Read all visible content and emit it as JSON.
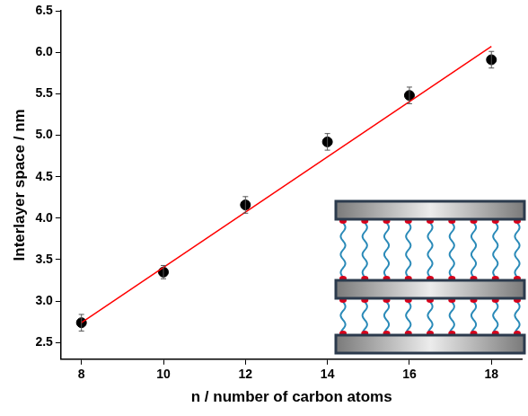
{
  "chart_data": {
    "type": "scatter",
    "x_label": "n / number of carbon atoms",
    "y_label": "Interlayer space / nm",
    "xlim": [
      7.5,
      18.75
    ],
    "xticks": [
      8,
      10,
      12,
      14,
      16,
      18
    ],
    "ylim": [
      2.3,
      6.5
    ],
    "yticks": [
      2.5,
      {
        "value": 3,
        "label": "3.0"
      },
      3.5,
      {
        "value": 4,
        "label": "4.0"
      },
      4.5,
      {
        "value": 5,
        "label": "5.0"
      },
      5.5,
      {
        "value": 6,
        "label": "6.0"
      },
      6.5
    ],
    "grid": false,
    "series": [
      {
        "type": "scatter",
        "color": "#000000",
        "marker": "circle",
        "x": [
          8,
          10,
          12,
          14,
          16,
          18
        ],
        "values": [
          2.74,
          3.35,
          4.16,
          4.92,
          5.48,
          5.91
        ],
        "error": [
          0.1,
          0.08,
          0.1,
          0.1,
          0.1,
          0.1
        ]
      },
      {
        "type": "line",
        "color": "#ff0000",
        "line_style": "solid",
        "x": [
          8,
          18
        ],
        "values": [
          2.74,
          6.07
        ]
      }
    ]
  }
}
